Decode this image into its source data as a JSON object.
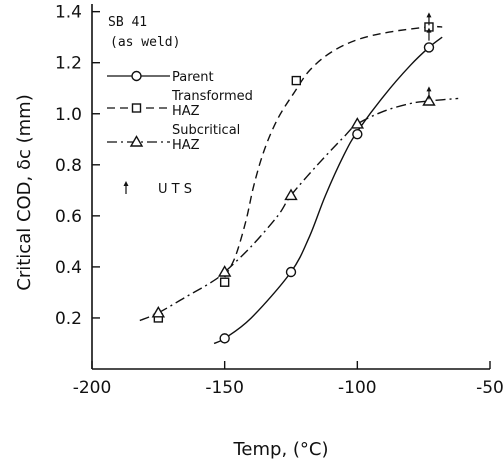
{
  "chart_data": {
    "type": "line",
    "annotation_lines": [
      "SB 41",
      "(as weld)"
    ],
    "xlabel": "Temp, (°C)",
    "ylabel": "Critical COD, δc (mm)",
    "xlim": [
      -200,
      -50
    ],
    "ylim": [
      0,
      1.43
    ],
    "x_ticks": [
      -200,
      -150,
      -100,
      -50
    ],
    "y_ticks": [
      0.2,
      0.4,
      0.6,
      0.8,
      1.0,
      1.2,
      1.4
    ],
    "x_tick_labels": [
      "-200",
      "-150",
      "-100",
      "-50"
    ],
    "y_tick_labels": [
      "0.2",
      "0.4",
      "0.6",
      "0.8",
      "1.0",
      "1.2",
      "1.4"
    ],
    "grid": false,
    "legend_position": "upper-left",
    "series": [
      {
        "name": "Parent",
        "line_style": "solid",
        "marker": "circle",
        "points": [
          [
            -150,
            0.12
          ],
          [
            -125,
            0.38
          ],
          [
            -100,
            0.92
          ],
          [
            -73,
            1.26
          ]
        ],
        "curve": [
          [
            -154,
            0.1
          ],
          [
            -150,
            0.12
          ],
          [
            -140,
            0.2
          ],
          [
            -125,
            0.38
          ],
          [
            -118,
            0.52
          ],
          [
            -112,
            0.68
          ],
          [
            -105,
            0.84
          ],
          [
            -100,
            0.93
          ],
          [
            -90,
            1.07
          ],
          [
            -80,
            1.19
          ],
          [
            -73,
            1.26
          ],
          [
            -68,
            1.3
          ]
        ]
      },
      {
        "name": "Transformed HAZ",
        "legend_lines": [
          "Transformed",
          "HAZ"
        ],
        "line_style": "dashed",
        "marker": "square",
        "points": [
          [
            -175,
            0.2
          ],
          [
            -150,
            0.34
          ],
          [
            -123,
            1.13
          ],
          [
            -73,
            1.34
          ]
        ],
        "curve": [
          [
            -150,
            0.36
          ],
          [
            -146,
            0.44
          ],
          [
            -142,
            0.58
          ],
          [
            -139,
            0.72
          ],
          [
            -135,
            0.86
          ],
          [
            -130,
            0.98
          ],
          [
            -124,
            1.08
          ],
          [
            -118,
            1.17
          ],
          [
            -110,
            1.24
          ],
          [
            -100,
            1.29
          ],
          [
            -88,
            1.32
          ],
          [
            -73,
            1.34
          ],
          [
            -68,
            1.34
          ]
        ]
      },
      {
        "name": "Subcritical HAZ",
        "legend_lines": [
          "Subcritical",
          "HAZ"
        ],
        "line_style": "dashdot",
        "marker": "triangle",
        "points": [
          [
            -175,
            0.22
          ],
          [
            -150,
            0.38
          ],
          [
            -125,
            0.68
          ],
          [
            -100,
            0.96
          ],
          [
            -73,
            1.05
          ]
        ],
        "curve": [
          [
            -182,
            0.19
          ],
          [
            -175,
            0.22
          ],
          [
            -165,
            0.28
          ],
          [
            -155,
            0.34
          ],
          [
            -150,
            0.38
          ],
          [
            -140,
            0.48
          ],
          [
            -130,
            0.6
          ],
          [
            -125,
            0.68
          ],
          [
            -115,
            0.8
          ],
          [
            -105,
            0.91
          ],
          [
            -100,
            0.96
          ],
          [
            -90,
            1.01
          ],
          [
            -80,
            1.04
          ],
          [
            -73,
            1.05
          ],
          [
            -62,
            1.06
          ]
        ]
      }
    ],
    "uts_legend_label": "U T S",
    "uts_markers": [
      [
        -73,
        1.37
      ],
      [
        -73,
        1.08
      ],
      [
        -73,
        1.31
      ]
    ]
  }
}
